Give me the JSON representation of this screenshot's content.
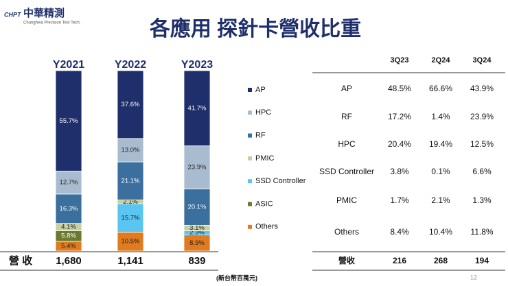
{
  "logo": {
    "mark": "CHPT",
    "name": "中華精測",
    "subtitle": "Chunghwa Precision Test Tech."
  },
  "chart_data": {
    "type": "stacked_bar",
    "title": "各應用 探針卡營收比重",
    "categories": [
      "Y2021",
      "Y2022",
      "Y2023"
    ],
    "series": [
      {
        "name": "AP",
        "color": "#1f2f6b",
        "values": [
          55.7,
          37.6,
          41.7
        ],
        "value_labels": [
          "55.7%",
          "37.6%",
          "41.7%"
        ]
      },
      {
        "name": "HPC",
        "color": "#a9bccf",
        "values": [
          12.7,
          13.0,
          23.9
        ],
        "value_labels": [
          "12.7%",
          "13.0%",
          "23.9%"
        ]
      },
      {
        "name": "RF",
        "color": "#3a6f9e",
        "values": [
          16.3,
          21.1,
          20.1
        ],
        "value_labels": [
          "16.3%",
          "21.1%",
          "20.1%"
        ]
      },
      {
        "name": "PMIC",
        "color": "#c9cfa0",
        "values": [
          4.1,
          2.1,
          3.1
        ],
        "value_labels": [
          "4.1%",
          "2.1%",
          "3.1%"
        ]
      },
      {
        "name": "SSD Controller",
        "color": "#5bc5f2",
        "values": [
          null,
          15.7,
          2.3
        ],
        "value_labels": [
          null,
          "15.7%",
          "2.3%"
        ]
      },
      {
        "name": "ASIC",
        "color": "#6b7a2f",
        "values": [
          5.8,
          null,
          null
        ],
        "value_labels": [
          "5.8%",
          null,
          null
        ]
      },
      {
        "name": "Others",
        "color": "#e07b1f",
        "values": [
          5.4,
          10.5,
          8.9
        ],
        "value_labels": [
          "5.4%",
          "10.5%",
          "8.9%"
        ]
      }
    ],
    "legend": "right"
  },
  "revenue_row": {
    "label": "營 收",
    "values": [
      "1,680",
      "1,141",
      "839"
    ],
    "unit_note": "(新台幣百萬元)"
  },
  "table": {
    "header": [
      "3Q23",
      "2Q24",
      "3Q24"
    ],
    "rows": [
      [
        "AP",
        "48.5%",
        "66.6%",
        "43.9%"
      ],
      [
        "RF",
        "17.2%",
        "1.4%",
        "23.9%"
      ],
      [
        "HPC",
        "20.4%",
        "19.4%",
        "12.5%"
      ],
      [
        "SSD Controller",
        "3.8%",
        "0.1%",
        "6.6%"
      ],
      [
        "PMIC",
        "1.7%",
        "2.1%",
        "1.3%"
      ],
      [
        "Others",
        "8.4%",
        "10.4%",
        "11.8%"
      ]
    ],
    "footer": [
      "營收",
      "216",
      "268",
      "194"
    ]
  },
  "page_number": "12"
}
